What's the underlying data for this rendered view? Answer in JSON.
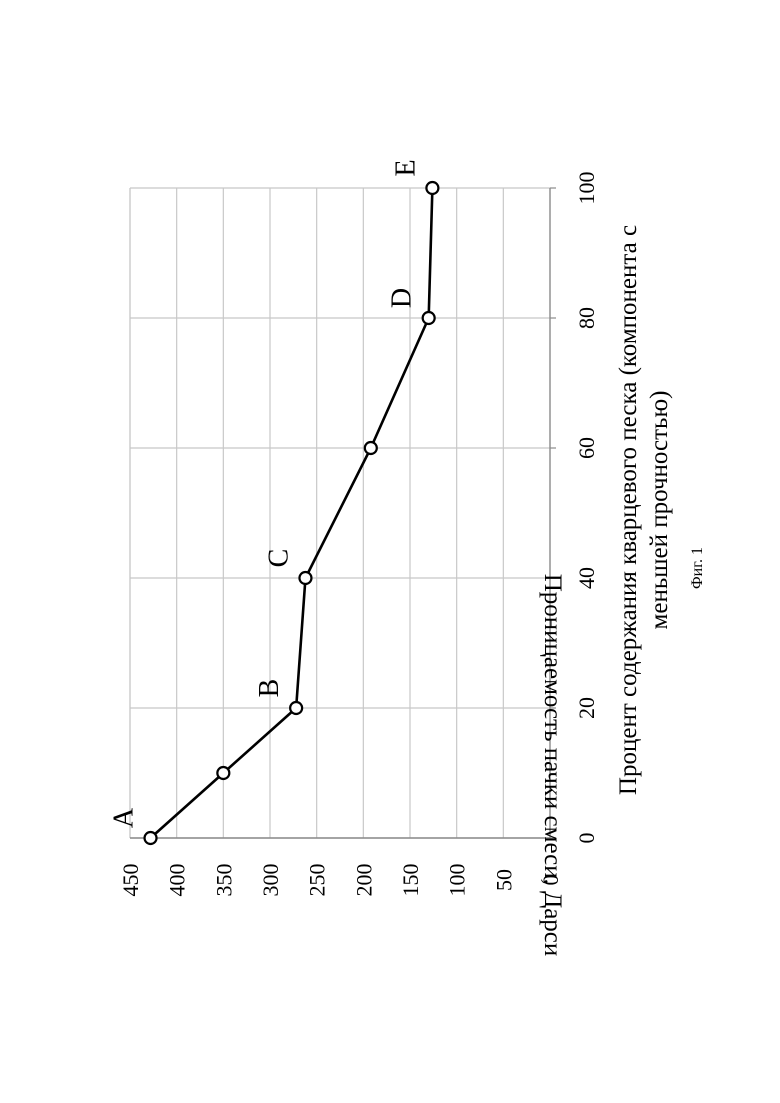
{
  "chart_data": {
    "type": "line",
    "title": "",
    "xlabel": "Процент содержания кварцевого песка (компонента с меньшей прочностью)",
    "xlabel_lines": [
      "Процент содержания кварцевого песка (компонента с",
      "меньшей прочностью)"
    ],
    "ylabel": "Проницаемость пачки смеси, Дарси",
    "xlim": [
      0,
      100
    ],
    "ylim": [
      0,
      450
    ],
    "xticks": [
      "0",
      "20",
      "40",
      "60",
      "80",
      "100"
    ],
    "yticks": [
      "0",
      "50",
      "100",
      "150",
      "200",
      "250",
      "300",
      "350",
      "400",
      "450"
    ],
    "grid": true,
    "orientation": "rotated 90° counter-clockwise",
    "series": [
      {
        "x": [
          0,
          10,
          20,
          40,
          60,
          80,
          100
        ],
        "y": [
          428,
          350,
          272,
          262,
          192,
          130,
          126
        ]
      }
    ],
    "point_labels": [
      {
        "text": "A",
        "x": 0,
        "y": 428
      },
      {
        "text": "B",
        "x": 20,
        "y": 272
      },
      {
        "text": "C",
        "x": 40,
        "y": 262
      },
      {
        "text": "D",
        "x": 80,
        "y": 130
      },
      {
        "text": "E",
        "x": 100,
        "y": 126
      }
    ]
  },
  "figure": {
    "caption": "Фиг. 1"
  }
}
